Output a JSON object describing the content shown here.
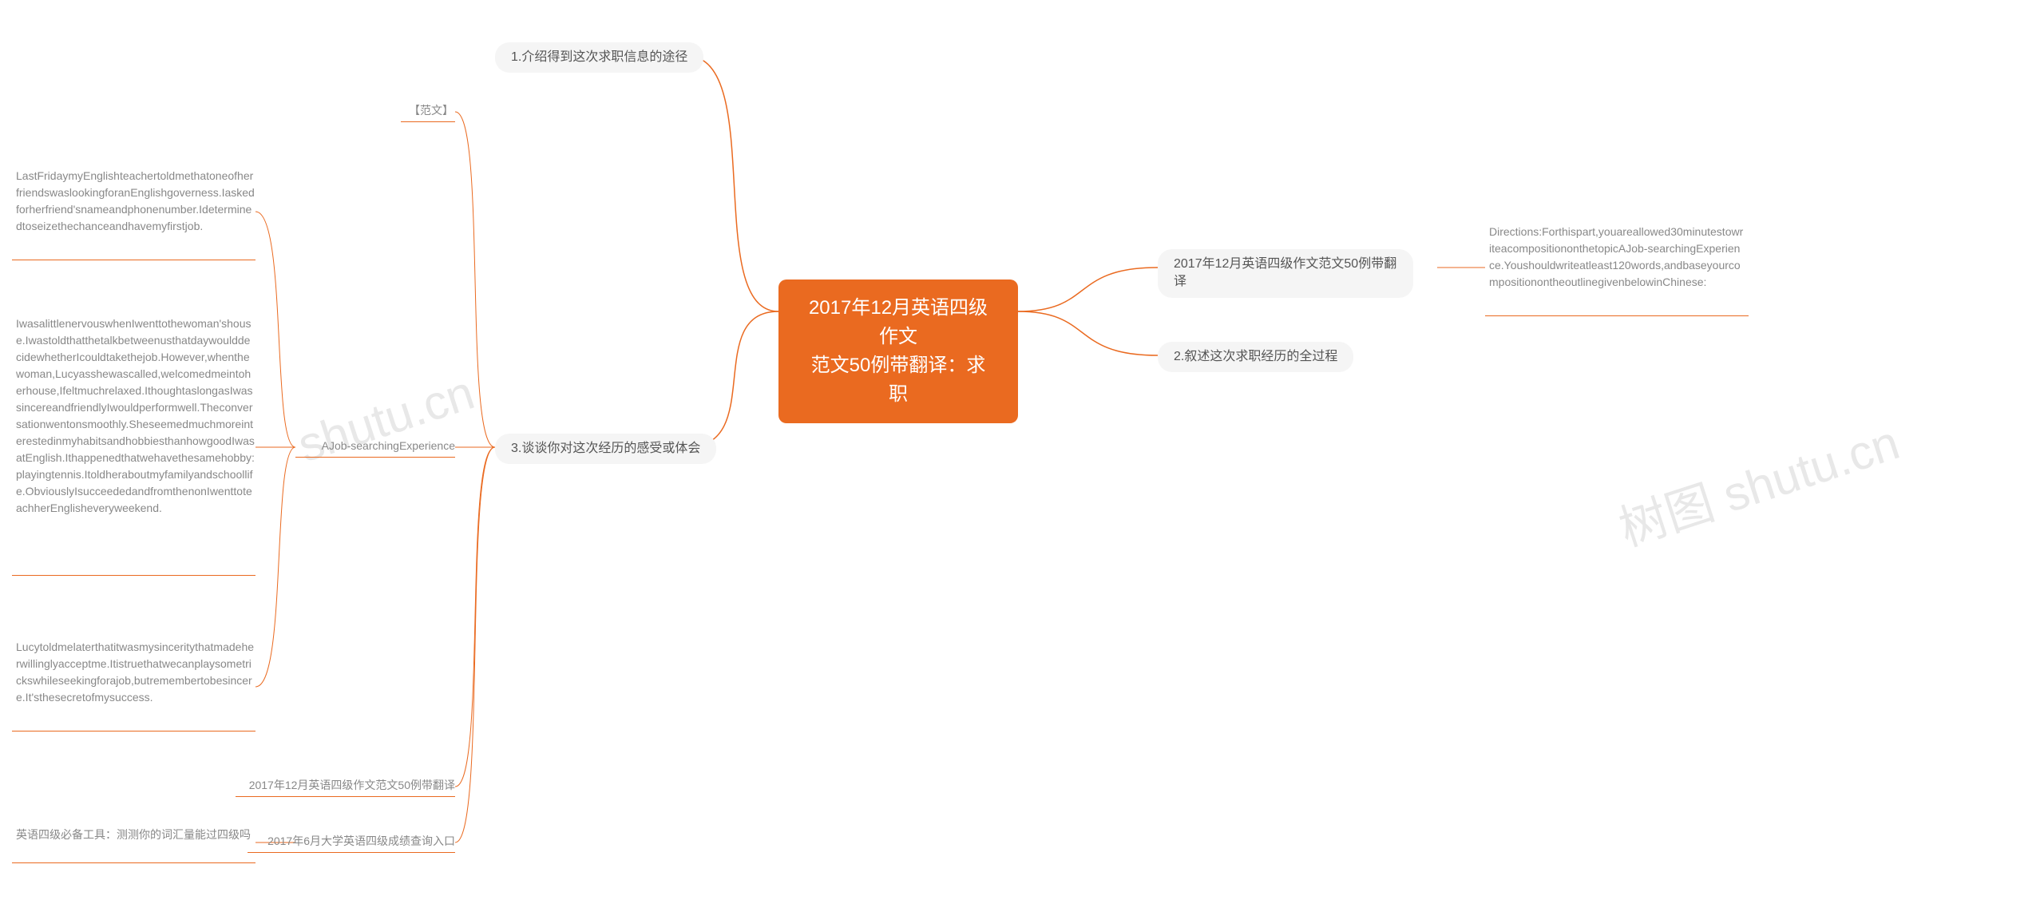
{
  "colors": {
    "accent": "#ea6a20",
    "node_bg": "#f5f5f5",
    "node_text": "#555555",
    "leaf_text": "#888888",
    "watermark": "#e8e8e8",
    "background": "#ffffff",
    "center_text": "#ffffff"
  },
  "typography": {
    "center_fontsize": 24,
    "branch_fontsize": 16,
    "leaf_fontsize": 14,
    "watermark_fontsize": 60
  },
  "center": {
    "line1": "2017年12月英语四级作文",
    "line2": "范文50例带翻译：求职"
  },
  "right_branches": [
    {
      "label": "2017年12月英语四级作文范文50例带翻译",
      "leaf": "Directions:Forthispart,youareallowed30minutestowriteacompositiononthetopicAJob-searchingExperience.Youshouldwriteatleast120words,andbaseyourcompositionontheoutlinegivenbelowinChinese:"
    },
    {
      "label": "2.叙述这次求职经历的全过程"
    }
  ],
  "left_branches": [
    {
      "label": "1.介绍得到这次求职信息的途径"
    },
    {
      "label": "3.谈谈你对这次经历的感受或体会",
      "children": [
        {
          "label": "【范文】"
        },
        {
          "label": "AJob-searchingExperience",
          "leaves": [
            "LastFridaymyEnglishteachertoldmethatoneofherfriendswaslookingforanEnglishgoverness.Iaskedforherfriend'snameandphonenumber.Ideterminedtoseizethechanceandhavemyfirstjob.",
            "IwasalittlenervouswhenIwenttothewoman'shouse.IwastoldthatthetalkbetweenusthatdaywoulddecidewhetherIcouldtakethejob.However,whenthewoman,Lucyasshewascalled,welcomedmeintoherhouse,Ifeltmuchrelaxed.IthoughtaslongasIwassincereandfriendlyIwouldperformwell.Theconversationwentonsmoothly.SheseemedmuchmoreinterestedinmyhabitsandhobbiesthanhowgoodIwasatEnglish.Ithappenedthatwehavethesamehobby:playingtennis.Itoldheraboutmyfamilyandschoollife.ObviouslyIsucceededandfromthenonIwenttoteachherEnglisheveryweekend.",
            "Lucytoldmelaterthatitwasmysinceritythatmadeherwillinglyacceptme.Itistruethatwecanplaysometrickswhileseekingforajob,butremembertobesincere.It'sthesecretofmysuccess."
          ]
        },
        {
          "label": "2017年12月英语四级作文范文50例带翻译"
        },
        {
          "label": "2017年6月大学英语四级成绩查询入口",
          "leaf": "英语四级必备工具：测测你的词汇量能过四级吗"
        }
      ]
    }
  ],
  "watermarks": [
    "shutu.cn",
    "树图 shutu.cn"
  ]
}
